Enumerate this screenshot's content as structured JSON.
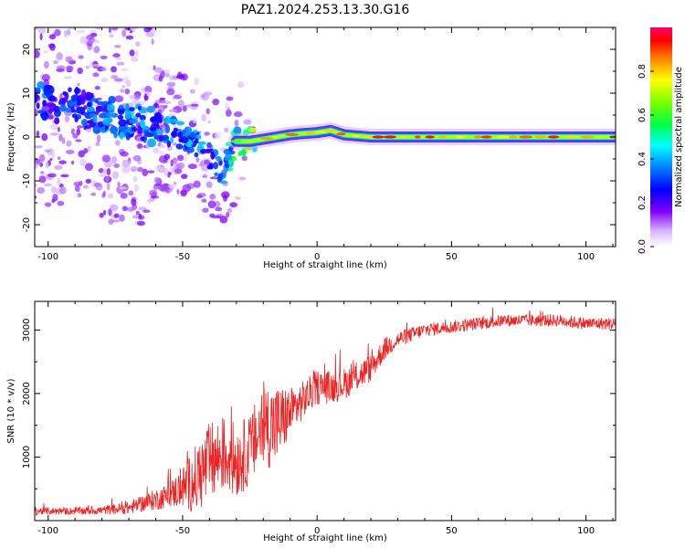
{
  "title": "PAZ1.2024.253.13.30.G16",
  "colors": {
    "spectrum_palette": [
      "#ffffff",
      "#d9b8ff",
      "#9933ff",
      "#3300ff",
      "#0066ff",
      "#00d9ff",
      "#00ff66",
      "#99ff00",
      "#ffff00",
      "#ff9900",
      "#ff0000",
      "#ff0066"
    ],
    "snr_line": "#ee2222"
  },
  "chart_data": [
    {
      "type": "heatmap",
      "name": "spectrogram",
      "xlabel": "Height of straight line (km)",
      "ylabel": "Frequency (Hz)",
      "xlim": [
        -105,
        111
      ],
      "ylim": [
        -25,
        25
      ],
      "xticks": [
        -100,
        -50,
        0,
        50,
        100
      ],
      "yticks": [
        -20,
        -10,
        0,
        10,
        20
      ],
      "colorbar": {
        "label": "Normalized spectral amplitude",
        "range": [
          0.0,
          1.0
        ],
        "ticks": [
          0.0,
          0.2,
          0.4,
          0.6,
          0.8
        ]
      },
      "ridge": {
        "x": [
          -105,
          -100,
          -90,
          -80,
          -70,
          -60,
          -50,
          -45,
          -40,
          -35,
          -30,
          -25,
          -20,
          -15,
          -10,
          -5,
          0,
          5,
          10,
          20,
          40,
          60,
          80,
          100,
          111
        ],
        "y": [
          9,
          8,
          7,
          5,
          4,
          2,
          0.5,
          -1,
          -4,
          -8,
          -1,
          -1,
          -0.5,
          0,
          0.5,
          0.8,
          1,
          1.5,
          0.5,
          0,
          0,
          0,
          0,
          0,
          0
        ],
        "amplitude": [
          0.3,
          0.35,
          0.3,
          0.35,
          0.4,
          0.35,
          0.4,
          0.4,
          0.35,
          0.35,
          0.6,
          0.7,
          0.75,
          0.8,
          0.85,
          0.85,
          0.9,
          0.85,
          0.8,
          0.9,
          0.9,
          0.85,
          0.9,
          0.85,
          0.8
        ]
      },
      "scatter_x_range": [
        -105,
        -20
      ]
    },
    {
      "type": "line",
      "name": "snr",
      "xlabel": "Height of straight line (km)",
      "ylabel": "SNR (10 * v/v)",
      "xlim": [
        -105,
        111
      ],
      "ylim": [
        0,
        3450
      ],
      "xticks": [
        -100,
        -50,
        0,
        50,
        100
      ],
      "yticks": [
        1000,
        2000,
        3000
      ],
      "envelope": {
        "x": [
          -105,
          -90,
          -80,
          -70,
          -65,
          -60,
          -55,
          -50,
          -45,
          -40,
          -35,
          -30,
          -25,
          -20,
          -15,
          -10,
          -5,
          0,
          5,
          10,
          20,
          25,
          30,
          40,
          50,
          60,
          70,
          80,
          90,
          100,
          111
        ],
        "y": [
          150,
          150,
          160,
          200,
          270,
          330,
          400,
          520,
          650,
          900,
          1050,
          950,
          1100,
          1500,
          1500,
          1700,
          1900,
          2100,
          2100,
          2150,
          2400,
          2700,
          2850,
          3000,
          3050,
          3100,
          3150,
          3150,
          3150,
          3100,
          3100
        ],
        "noise": [
          60,
          60,
          70,
          100,
          130,
          170,
          200,
          330,
          550,
          650,
          600,
          600,
          550,
          700,
          650,
          400,
          300,
          280,
          260,
          250,
          220,
          180,
          130,
          110,
          100,
          100,
          100,
          100,
          100,
          100,
          100
        ]
      }
    }
  ]
}
